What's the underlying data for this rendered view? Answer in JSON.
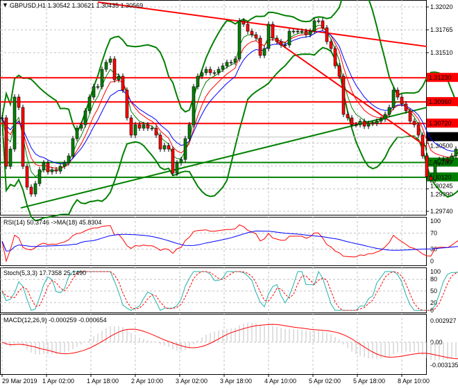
{
  "header": {
    "symbol": "GBPUSD,H1",
    "ohlc": "1.30542 1.30621 1.30435 1.30569"
  },
  "chart_data": [
    {
      "type": "candlestick",
      "title": "GBPUSD,H1 1.30542 1.30621 1.30435 1.30569",
      "ylim": [
        1.2974,
        1.3202
      ],
      "grid": true,
      "y_ticks": [
        "1.32020",
        "1.31765",
        "1.31510",
        "1.30500",
        "1.30245",
        "1.29990",
        "1.29740"
      ],
      "x_ticks": [
        "29 Mar 2019",
        "1 Apr 02:00",
        "1 Apr 18:00",
        "2 Apr 10:00",
        "3 Apr 02:00",
        "3 Apr 18:00",
        "4 Apr 10:00",
        "5 Apr 02:00",
        "5 Apr 18:00",
        "8 Apr 10:00"
      ],
      "close": [
        1.30783,
        1.30242,
        1.30435,
        1.31015,
        1.30899,
        1.30242,
        1.3001,
        1.29933,
        1.30049,
        1.30204,
        1.30281,
        1.3018,
        1.30204,
        1.30188,
        1.30242,
        1.30281,
        1.30358,
        1.30551,
        1.30667,
        1.30706,
        1.30861,
        1.31015,
        1.31131,
        1.31131,
        1.31324,
        1.31402,
        1.3144,
        1.31208,
        1.31247,
        1.31092,
        1.30783,
        1.3059,
        1.30706,
        1.30667,
        1.30706,
        1.30667,
        1.30667,
        1.3059,
        1.30435,
        1.30474,
        1.30435,
        1.30165,
        1.30281,
        1.30319,
        1.30551,
        1.30706,
        1.31131,
        1.31247,
        1.31286,
        1.31324,
        1.31286,
        1.31286,
        1.31324,
        1.31363,
        1.31402,
        1.31402,
        1.3144,
        1.31865,
        1.31827,
        1.31749,
        1.31711,
        1.31672,
        1.31479,
        1.31556,
        1.31827,
        1.31672,
        1.31633,
        1.31595,
        1.31595,
        1.31749,
        1.31749,
        1.31749,
        1.31749,
        1.31711,
        1.31749,
        1.31865,
        1.31865,
        1.31788,
        1.31633,
        1.31556,
        1.31363,
        1.31247,
        1.30822,
        1.30783,
        1.30706,
        1.30706,
        1.30745,
        1.3069,
        1.30721,
        1.30721,
        1.30745,
        1.30768,
        1.30822,
        1.30899,
        1.31092,
        1.31015,
        1.30938,
        1.30861,
        1.30745,
        1.30706,
        1.3059,
        1.30358,
        1.30126,
        1.30088,
        1.30281,
        1.30319,
        1.30319,
        1.30304,
        1.30358,
        1.30435,
        1.30513,
        1.3059,
        1.30629,
        1.3059,
        1.30551,
        1.30551,
        1.30569
      ],
      "levels": [
        {
          "label": "1.31230",
          "price": 1.3123,
          "color": "#ff0000"
        },
        {
          "label": "1.30960",
          "price": 1.3096,
          "color": "#ff0000"
        },
        {
          "label": "1.30720",
          "price": 1.3072,
          "color": "#ff0000"
        },
        {
          "label": "1.30285",
          "price": 1.30285,
          "color": "#008000"
        },
        {
          "label": "1.30120",
          "price": 1.3012,
          "color": "#008000"
        }
      ],
      "last_price": {
        "label": "1.30569",
        "price": 1.30569,
        "color": "#000000"
      },
      "trendlines": [
        {
          "from": [
            23,
            1.32074
          ],
          "to": [
            102,
            1.31579
          ],
          "color": "#ff0000"
        },
        {
          "from": [
            66,
            1.31633
          ],
          "to": [
            102,
            1.30458
          ],
          "color": "#ff0000"
        },
        {
          "from": [
            4.5,
            1.29778
          ],
          "to": [
            102,
            1.30899
          ],
          "color": "#008000"
        }
      ],
      "colors": {
        "bull": "#008000",
        "bear": "#ff0000",
        "bands": "#008000",
        "ma_fast": "#008000",
        "ma_mid": "#ff0000",
        "ma_slow": "#0000ff"
      }
    },
    {
      "type": "line",
      "title": "RSI(14) 50.3746  ->MA(18) 45.8304",
      "ylim": [
        0,
        100
      ],
      "y_ticks": [
        "100",
        "70",
        "30",
        "0"
      ],
      "series_colors": [
        "#ff0000",
        "#0000ff"
      ]
    },
    {
      "type": "line",
      "title": "Stoch(5,3,3) 17.7358 25.1490",
      "ylim": [
        0,
        100
      ],
      "y_ticks": [
        "100",
        "80",
        "50",
        "20",
        "0"
      ],
      "series_colors": [
        "#20b2aa",
        "#ff0000"
      ]
    },
    {
      "type": "bar",
      "title": "MACD(12,26,9) -0.000259 -0.000654",
      "ylim": [
        -0.003135,
        0.002927
      ],
      "y_ticks": [
        "0.002927",
        "0.00",
        "-0.003135"
      ],
      "series_colors": [
        "#c0c0c0",
        "#ff0000"
      ]
    }
  ]
}
